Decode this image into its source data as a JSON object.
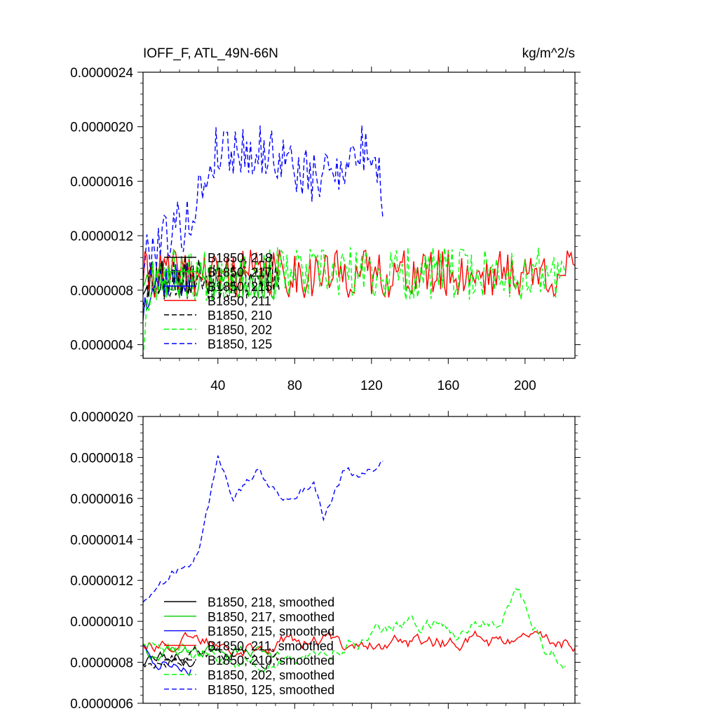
{
  "chart_data": [
    {
      "type": "line",
      "title": "IOFF_F, ATL_49N-66N",
      "units": "kg/m^2/s",
      "xlabel": "",
      "ylabel": "",
      "xlim": [
        1,
        226
      ],
      "ylim": [
        3e-07,
        2.4e-06
      ],
      "xticks": [
        40,
        80,
        120,
        160,
        200
      ],
      "xtick_labels": [
        "40",
        "80",
        "120",
        "160",
        "200"
      ],
      "yticks": [
        4e-07,
        8e-07,
        1.2e-06,
        1.6e-06,
        2e-06,
        2.4e-06
      ],
      "ytick_labels": [
        "0.0000004",
        "0.0000008",
        "0.0000012",
        "0.0000016",
        "0.0000020",
        "0.0000024"
      ],
      "legend_position": "lower-left",
      "series": [
        {
          "name": "B1850, 218",
          "color": "#000000",
          "dash": "solid",
          "n": 28,
          "start": 8.5e-07,
          "mean": 9e-07,
          "amp": 1.6e-07,
          "seed": 11
        },
        {
          "name": "B1850, 217",
          "color": "#00cc00",
          "dash": "solid",
          "n": 72,
          "start": 9e-07,
          "mean": 8.8e-07,
          "amp": 1.5e-07,
          "seed": 23
        },
        {
          "name": "B1850, 215",
          "color": "#0000ff",
          "dash": "solid",
          "n": 26,
          "start": 6.5e-07,
          "mean": 8.8e-07,
          "amp": 1.5e-07,
          "seed": 37
        },
        {
          "name": "B1850, 211",
          "color": "#ff0000",
          "dash": "solid",
          "n": 226,
          "start": 9e-07,
          "mean": 9.2e-07,
          "amp": 1.8e-07,
          "seed": 41
        },
        {
          "name": "B1850, 210",
          "color": "#000000",
          "dash": "dashed",
          "n": 72,
          "start": 8e-07,
          "mean": 9e-07,
          "amp": 1.8e-07,
          "seed": 53
        },
        {
          "name": "B1850, 202",
          "color": "#00ff00",
          "dash": "dashed",
          "n": 221,
          "start": 4e-07,
          "mean": 9.2e-07,
          "amp": 2e-07,
          "seed": 67
        },
        {
          "name": "B1850, 125",
          "color": "#0000ff",
          "dash": "dashed",
          "n": 126,
          "start": 1e-06,
          "mean": 1.7e-06,
          "amp": 2e-07,
          "seed": 79,
          "anchors": [
            [
              1,
              1e-06
            ],
            [
              10,
              1.2e-06
            ],
            [
              25,
              1.3e-06
            ],
            [
              33,
              1.6e-06
            ],
            [
              40,
              1.85e-06
            ],
            [
              70,
              1.8e-06
            ],
            [
              90,
              1.6e-06
            ],
            [
              100,
              1.7e-06
            ],
            [
              120,
              1.85e-06
            ],
            [
              126,
              1.5e-06
            ]
          ]
        }
      ]
    },
    {
      "type": "line",
      "title": "",
      "xlabel": "",
      "ylabel": "",
      "xlim": [
        1,
        226
      ],
      "ylim": [
        6e-07,
        2e-06
      ],
      "xticks": [
        40,
        80,
        120,
        160,
        200
      ],
      "xtick_labels": [],
      "yticks": [
        6e-07,
        8e-07,
        1e-06,
        1.2e-06,
        1.4e-06,
        1.6e-06,
        1.8e-06,
        2e-06
      ],
      "ytick_labels": [
        "0.0000006",
        "0.0000008",
        "0.0000010",
        "0.0000012",
        "0.0000014",
        "0.0000016",
        "0.0000018",
        "0.0000020"
      ],
      "legend_position": "lower-left",
      "series": [
        {
          "name": "B1850, 218, smoothed",
          "color": "#000000",
          "dash": "solid",
          "n": 28,
          "start": 8e-07,
          "mean": 8.2e-07,
          "amp": 5e-08,
          "seed": 111
        },
        {
          "name": "B1850, 217, smoothed",
          "color": "#00cc00",
          "dash": "solid",
          "n": 72,
          "start": 9e-07,
          "mean": 8.5e-07,
          "amp": 5e-08,
          "seed": 123
        },
        {
          "name": "B1850, 215, smoothed",
          "color": "#0000ff",
          "dash": "solid",
          "n": 26,
          "start": 9e-07,
          "mean": 8e-07,
          "amp": 6e-08,
          "seed": 137
        },
        {
          "name": "B1850, 211, smoothed",
          "color": "#ff0000",
          "dash": "solid",
          "n": 226,
          "start": 9e-07,
          "mean": 9e-07,
          "amp": 6e-08,
          "seed": 141
        },
        {
          "name": "B1850, 210, smoothed",
          "color": "#000000",
          "dash": "dashed",
          "n": 72,
          "start": 8e-07,
          "mean": 8.2e-07,
          "amp": 6e-08,
          "seed": 153
        },
        {
          "name": "B1850, 202, smoothed",
          "color": "#00ff00",
          "dash": "dashed",
          "n": 221,
          "start": 9e-07,
          "mean": 9.3e-07,
          "amp": 6e-08,
          "seed": 167,
          "anchors": [
            [
              1,
              9e-07
            ],
            [
              60,
              8e-07
            ],
            [
              120,
              9.3e-07
            ],
            [
              140,
              1e-06
            ],
            [
              170,
              9.5e-07
            ],
            [
              185,
              1e-06
            ],
            [
              195,
              1.15e-06
            ],
            [
              210,
              9e-07
            ],
            [
              221,
              8.2e-07
            ]
          ]
        },
        {
          "name": "B1850, 125, smoothed",
          "color": "#0000ff",
          "dash": "dashed",
          "n": 126,
          "start": 1.1e-06,
          "mean": 1.65e-06,
          "amp": 4e-08,
          "seed": 179,
          "anchors": [
            [
              1,
              1.1e-06
            ],
            [
              15,
              1.22e-06
            ],
            [
              30,
              1.35e-06
            ],
            [
              35,
              1.55e-06
            ],
            [
              40,
              1.78e-06
            ],
            [
              48,
              1.62e-06
            ],
            [
              60,
              1.72e-06
            ],
            [
              75,
              1.6e-06
            ],
            [
              90,
              1.68e-06
            ],
            [
              95,
              1.53e-06
            ],
            [
              105,
              1.72e-06
            ],
            [
              115,
              1.72e-06
            ],
            [
              126,
              1.78e-06
            ]
          ]
        }
      ]
    }
  ]
}
